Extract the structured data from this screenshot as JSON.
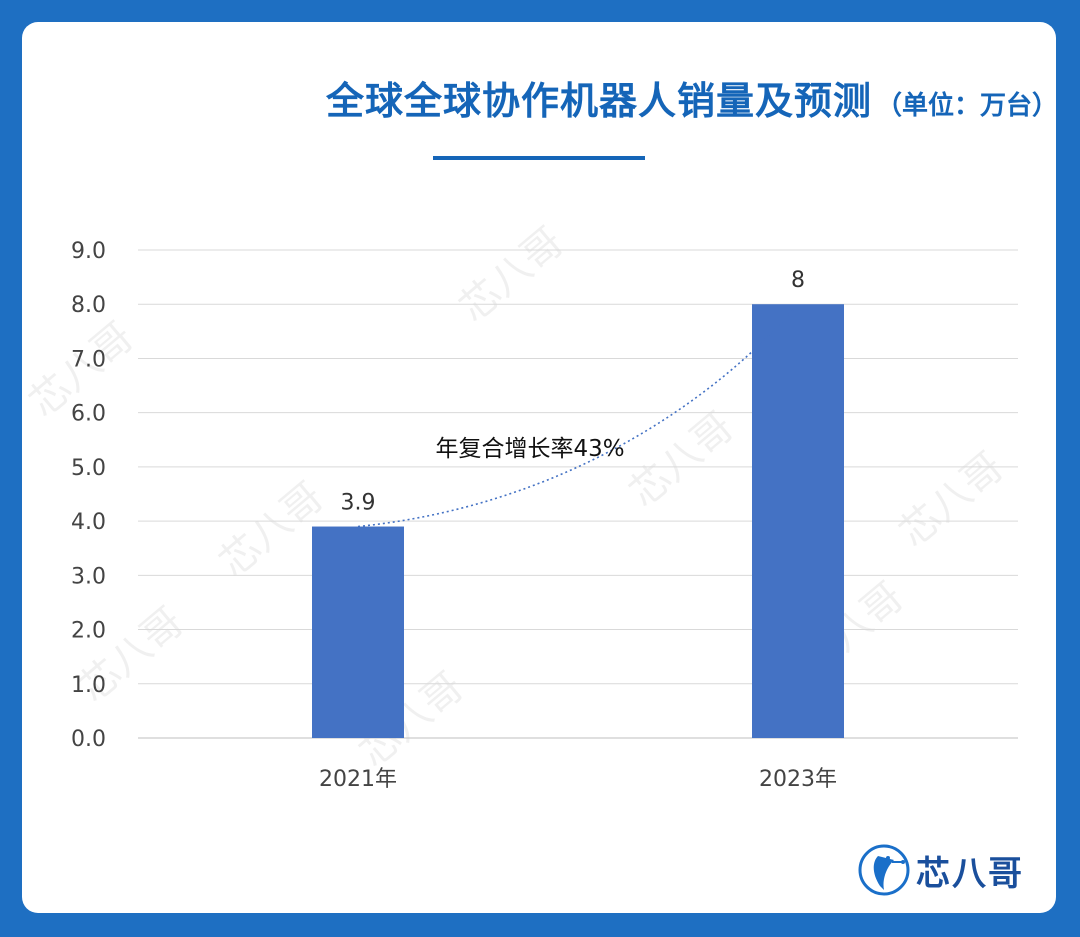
{
  "header": {
    "title": "全球全球协作机器人销量及预测",
    "unit": "（单位：万台）"
  },
  "chart_data": {
    "type": "bar",
    "categories": [
      "2021年",
      "2023年"
    ],
    "values": [
      3.9,
      8
    ],
    "value_labels": [
      "3.9",
      "8"
    ],
    "ylim": [
      0,
      9
    ],
    "yticks": [
      "0.0",
      "1.0",
      "2.0",
      "3.0",
      "4.0",
      "5.0",
      "6.0",
      "7.0",
      "8.0",
      "9.0"
    ],
    "grid": true,
    "bar_color": "#4472c4",
    "trend_line": {
      "style": "dotted",
      "color": "#4472c4"
    },
    "annotation": "年复合增长率43%"
  },
  "watermark": {
    "text": "芯八哥"
  },
  "logo": {
    "text": "芯八哥"
  },
  "colors": {
    "background": "#1e6fc2",
    "title": "#1565b8",
    "bar": "#4472c4"
  }
}
